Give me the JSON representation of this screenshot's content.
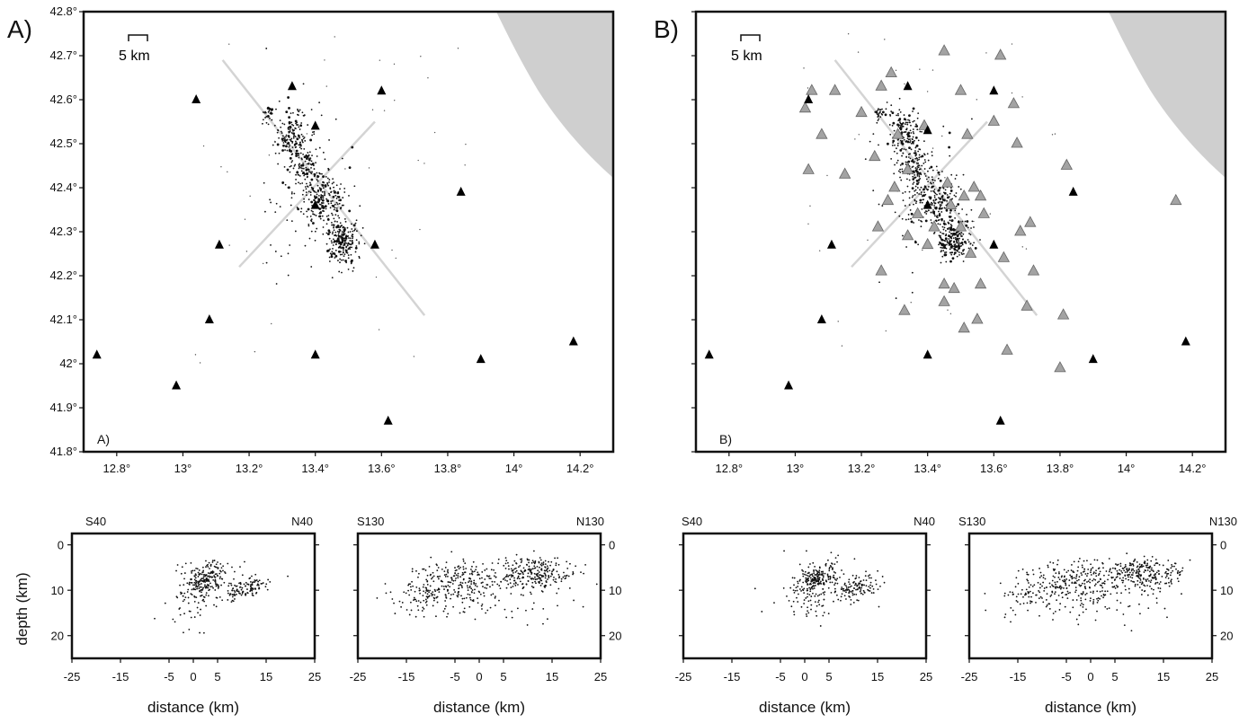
{
  "maps": [
    {
      "id": "A",
      "panel_letter": "A)",
      "inner_letter": "A)",
      "scale_label": "5 km",
      "lon_ticks": [
        "12.8°",
        "13°",
        "13.2°",
        "13.4°",
        "13.6°",
        "13.8°",
        "14°",
        "14.2°"
      ],
      "lat_ticks": [
        "42.8°",
        "42.7°",
        "42.6°",
        "42.5°",
        "42.4°",
        "42.3°",
        "42.2°",
        "42.1°",
        "42°",
        "41.9°",
        "41.8°"
      ],
      "stations_black": [
        [
          12.74,
          42.02
        ],
        [
          12.98,
          41.95
        ],
        [
          13.04,
          42.6
        ],
        [
          13.08,
          42.1
        ],
        [
          13.11,
          42.27
        ],
        [
          13.33,
          42.63
        ],
        [
          13.4,
          42.54
        ],
        [
          13.4,
          42.36
        ],
        [
          13.4,
          42.02
        ],
        [
          13.58,
          42.27
        ],
        [
          13.6,
          42.62
        ],
        [
          13.62,
          41.87
        ],
        [
          13.84,
          42.39
        ],
        [
          13.9,
          42.01
        ],
        [
          14.18,
          42.05
        ]
      ],
      "stations_gray": []
    },
    {
      "id": "B",
      "panel_letter": "B)",
      "inner_letter": "B)",
      "scale_label": "5 km",
      "lon_ticks": [
        "12.8°",
        "13°",
        "13.2°",
        "13.4°",
        "13.6°",
        "13.8°",
        "14°",
        "14.2°"
      ],
      "lat_ticks": [],
      "stations_black": [
        [
          12.74,
          42.02
        ],
        [
          12.98,
          41.95
        ],
        [
          13.04,
          42.6
        ],
        [
          13.08,
          42.1
        ],
        [
          13.11,
          42.27
        ],
        [
          13.34,
          42.63
        ],
        [
          13.4,
          42.53
        ],
        [
          13.4,
          42.36
        ],
        [
          13.4,
          42.02
        ],
        [
          13.6,
          42.27
        ],
        [
          13.6,
          42.62
        ],
        [
          13.62,
          41.87
        ],
        [
          13.84,
          42.39
        ],
        [
          13.9,
          42.01
        ],
        [
          14.18,
          42.05
        ]
      ],
      "stations_gray": [
        [
          13.03,
          42.58
        ],
        [
          13.05,
          42.62
        ],
        [
          13.08,
          42.52
        ],
        [
          13.04,
          42.44
        ],
        [
          13.12,
          42.62
        ],
        [
          13.15,
          42.43
        ],
        [
          13.2,
          42.57
        ],
        [
          13.24,
          42.47
        ],
        [
          13.26,
          42.63
        ],
        [
          13.29,
          42.66
        ],
        [
          13.25,
          42.31
        ],
        [
          13.26,
          42.21
        ],
        [
          13.28,
          42.37
        ],
        [
          13.3,
          42.4
        ],
        [
          13.31,
          42.52
        ],
        [
          13.34,
          42.44
        ],
        [
          13.34,
          42.29
        ],
        [
          13.37,
          42.34
        ],
        [
          13.39,
          42.54
        ],
        [
          13.4,
          42.27
        ],
        [
          13.42,
          42.31
        ],
        [
          13.45,
          42.71
        ],
        [
          13.45,
          42.18
        ],
        [
          13.46,
          42.41
        ],
        [
          13.47,
          42.36
        ],
        [
          13.48,
          42.17
        ],
        [
          13.5,
          42.62
        ],
        [
          13.5,
          42.31
        ],
        [
          13.51,
          42.38
        ],
        [
          13.51,
          42.08
        ],
        [
          13.52,
          42.52
        ],
        [
          13.53,
          42.25
        ],
        [
          13.54,
          42.4
        ],
        [
          13.56,
          42.38
        ],
        [
          13.56,
          42.18
        ],
        [
          13.57,
          42.34
        ],
        [
          13.6,
          42.55
        ],
        [
          13.62,
          42.7
        ],
        [
          13.63,
          42.24
        ],
        [
          13.64,
          42.03
        ],
        [
          13.66,
          42.59
        ],
        [
          13.67,
          42.5
        ],
        [
          13.68,
          42.3
        ],
        [
          13.7,
          42.13
        ],
        [
          13.71,
          42.32
        ],
        [
          13.72,
          42.21
        ],
        [
          13.8,
          41.99
        ],
        [
          13.81,
          42.11
        ],
        [
          13.82,
          42.45
        ],
        [
          14.15,
          42.37
        ],
        [
          13.45,
          42.14
        ],
        [
          13.55,
          42.1
        ],
        [
          13.33,
          42.12
        ]
      ]
    }
  ],
  "sections": [
    {
      "id": "A-S40",
      "left_label": "S40",
      "right_label": "N40",
      "ylabel": "depth (km)",
      "xlabel": "distance (km)",
      "x_ticks": [
        "-25",
        "-15",
        "-5",
        "0",
        "5",
        "15",
        "25"
      ],
      "y_ticks_left": [
        "0",
        "10",
        "20"
      ],
      "y_ticks_right": []
    },
    {
      "id": "A-S130",
      "left_label": "S130",
      "right_label": "N130",
      "ylabel": "",
      "xlabel": "distance (km)",
      "x_ticks": [
        "-25",
        "-15",
        "-5",
        "0",
        "5",
        "15",
        "25"
      ],
      "y_ticks_left": [],
      "y_ticks_right": [
        "0",
        "10",
        "20"
      ]
    },
    {
      "id": "B-S40",
      "left_label": "S40",
      "right_label": "N40",
      "ylabel": "",
      "xlabel": "distance (km)",
      "x_ticks": [
        "-25",
        "-15",
        "-5",
        "0",
        "5",
        "15",
        "25"
      ],
      "y_ticks_left": [],
      "y_ticks_right": []
    },
    {
      "id": "B-S130",
      "left_label": "S130",
      "right_label": "N130",
      "ylabel": "",
      "xlabel": "distance (km)",
      "x_ticks": [
        "-25",
        "-15",
        "-5",
        "0",
        "5",
        "15",
        "25"
      ],
      "y_ticks_left": [],
      "y_ticks_right": [
        "0",
        "10",
        "20"
      ]
    }
  ],
  "colors": {
    "sea": "#cfcfcf",
    "event": "#111111",
    "gray_station": "#a3a3a3",
    "profile_line": "#d4d4d4"
  }
}
